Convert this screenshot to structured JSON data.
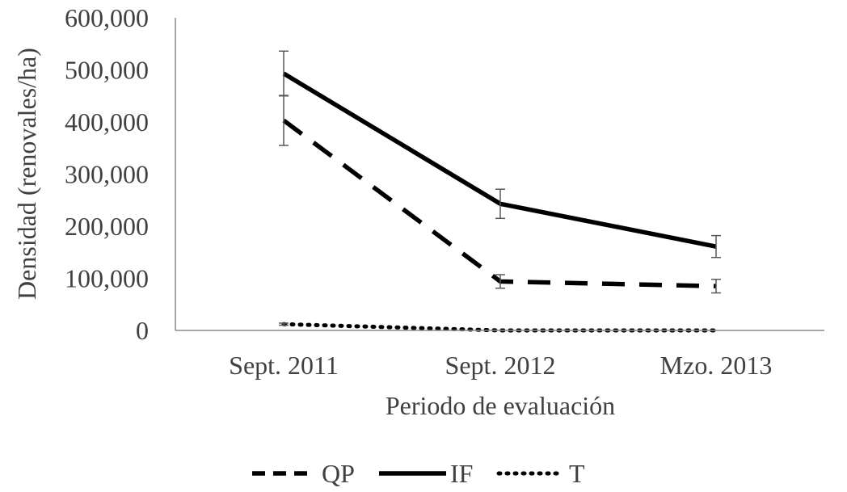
{
  "chart_data": {
    "type": "line",
    "title": "",
    "xlabel": "Periodo de evaluación",
    "ylabel": "Densidad (renovales/ha)",
    "categories": [
      "Sept. 2011",
      "Sept. 2012",
      "Mzo. 2013"
    ],
    "ylim": [
      0,
      600000
    ],
    "y_ticks": [
      0,
      100000,
      200000,
      300000,
      400000,
      500000,
      600000
    ],
    "y_tick_labels": [
      "0",
      "100,000",
      "200,000",
      "300,000",
      "400,000",
      "500,000",
      "600,000"
    ],
    "grid": false,
    "legend_position": "bottom",
    "series": [
      {
        "name": "QP",
        "style": "dashed",
        "color": "#000000",
        "values": [
          403000,
          94000,
          85000
        ],
        "error": [
          48000,
          13000,
          13000
        ]
      },
      {
        "name": "IF",
        "style": "solid",
        "color": "#000000",
        "values": [
          493000,
          243000,
          161000
        ],
        "error": [
          43000,
          28000,
          21000
        ]
      },
      {
        "name": "T",
        "style": "dotted",
        "color": "#000000",
        "values": [
          12000,
          0,
          0
        ],
        "error": [
          2000,
          0,
          0
        ]
      }
    ]
  }
}
